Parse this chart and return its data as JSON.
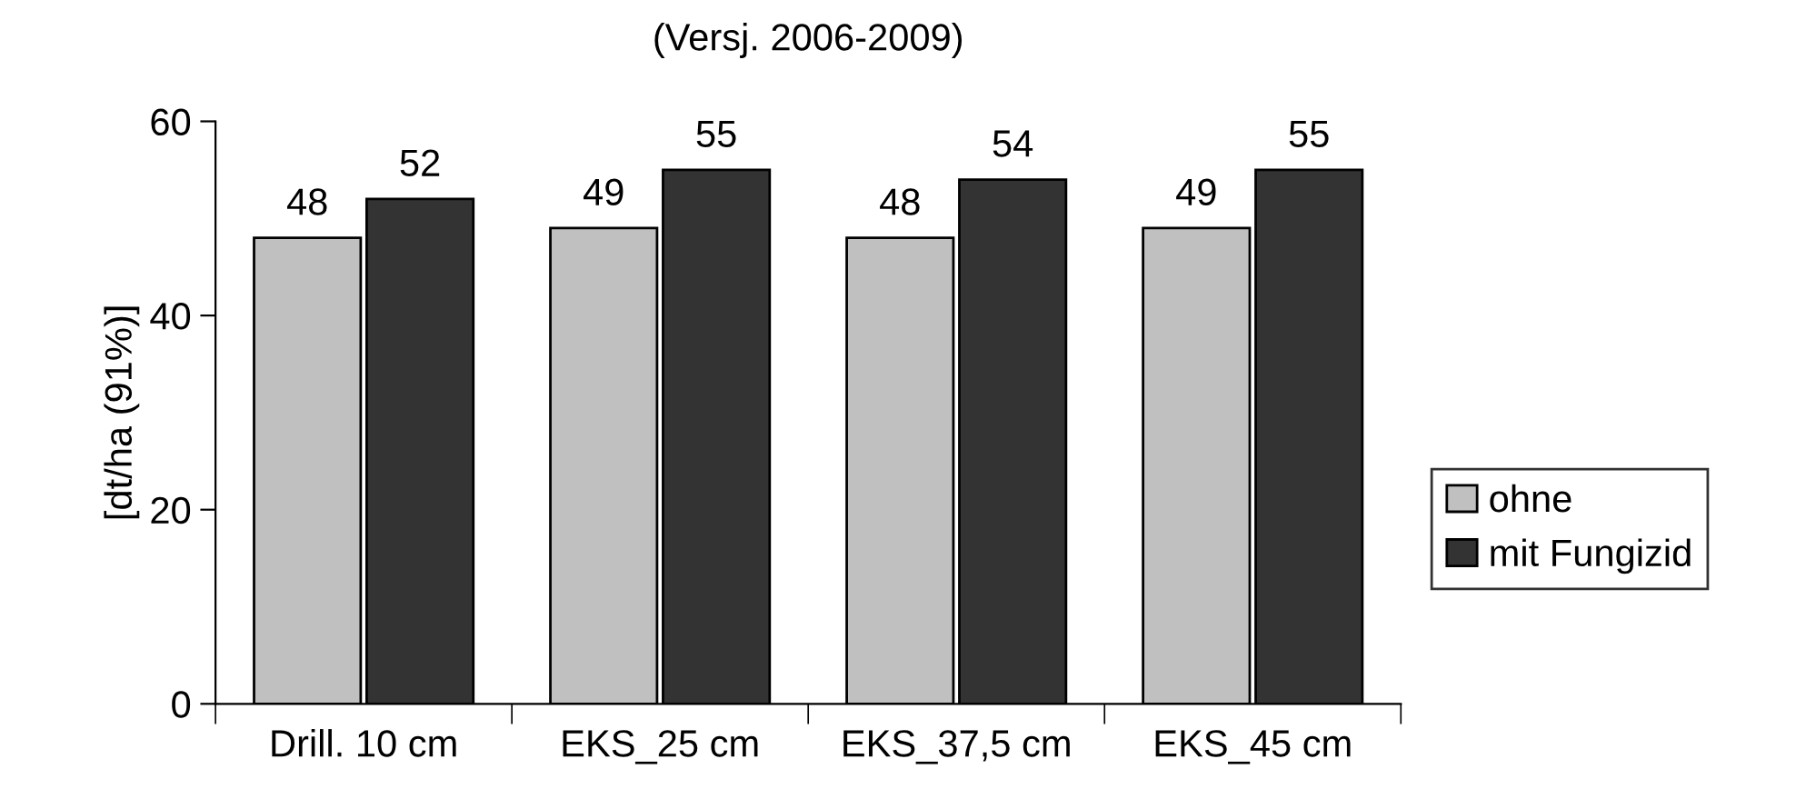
{
  "chart_data": {
    "type": "bar",
    "title": "(Versj. 2006-2009)",
    "ylabel": "[dt/ha (91%)]",
    "categories": [
      "Drill. 10 cm",
      "EKS_25 cm",
      "EKS_37,5 cm",
      "EKS_45 cm"
    ],
    "series": [
      {
        "name": "ohne",
        "color": "#c0c0c0",
        "values": [
          48,
          49,
          48,
          49
        ]
      },
      {
        "name": "mit Fungizid",
        "color": "#333333",
        "values": [
          52,
          55,
          54,
          55
        ]
      }
    ],
    "ylim": [
      0,
      60
    ],
    "yticks": [
      0,
      20,
      40,
      60
    ],
    "grid": false,
    "legend": "right",
    "data_labels": true
  }
}
